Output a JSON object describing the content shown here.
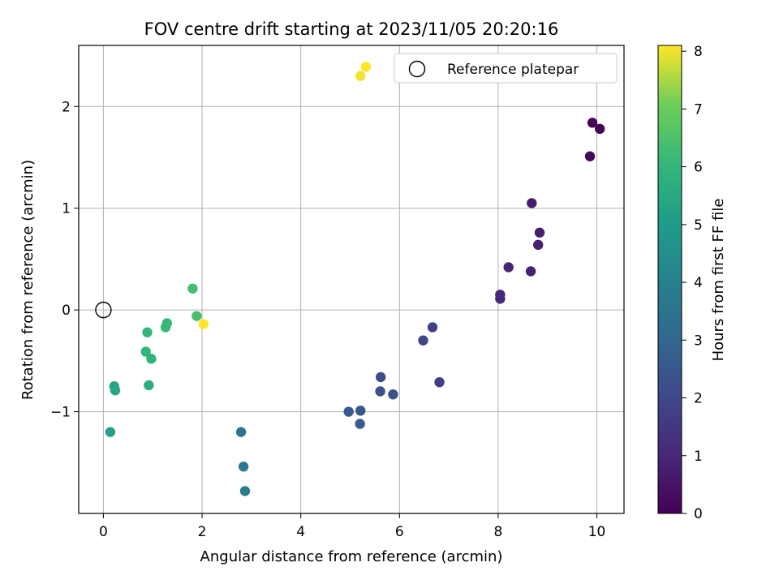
{
  "chart_data": {
    "type": "scatter",
    "title": "FOV centre drift starting at 2023/11/05 20:20:16",
    "xlabel": "Angular distance from reference (arcmin)",
    "ylabel": "Rotation from reference (arcmin)",
    "xlim": [
      -0.5,
      10.55
    ],
    "ylim": [
      -2.0,
      2.6
    ],
    "xticks": [
      0,
      2,
      4,
      6,
      8,
      10
    ],
    "xtick_labels": [
      "0",
      "2",
      "4",
      "6",
      "8",
      "10"
    ],
    "yticks": [
      -1,
      0,
      1,
      2
    ],
    "ytick_labels": [
      "−1",
      "0",
      "1",
      "2"
    ],
    "grid": true,
    "legend": {
      "entries": [
        "Reference platepar"
      ],
      "placement": "top-right"
    },
    "reference_point": {
      "x": 0,
      "y": 0,
      "name": "Reference platepar"
    },
    "colorbar": {
      "label": "Hours from first FF file",
      "range": [
        0,
        8.1
      ],
      "ticks": [
        0,
        1,
        2,
        3,
        4,
        5,
        6,
        7,
        8
      ],
      "tick_labels": [
        "0",
        "1",
        "2",
        "3",
        "4",
        "5",
        "6",
        "7",
        "8"
      ],
      "colormap": "viridis"
    },
    "points": [
      {
        "x": 9.91,
        "y": 1.84,
        "c": 0.05
      },
      {
        "x": 10.06,
        "y": 1.78,
        "c": 0.1
      },
      {
        "x": 9.86,
        "y": 1.51,
        "c": 0.15
      },
      {
        "x": 8.68,
        "y": 1.05,
        "c": 0.7
      },
      {
        "x": 8.84,
        "y": 0.76,
        "c": 0.75
      },
      {
        "x": 8.81,
        "y": 0.64,
        "c": 0.8
      },
      {
        "x": 8.21,
        "y": 0.42,
        "c": 0.9
      },
      {
        "x": 8.66,
        "y": 0.38,
        "c": 0.85
      },
      {
        "x": 8.04,
        "y": 0.15,
        "c": 1.0
      },
      {
        "x": 8.04,
        "y": 0.11,
        "c": 1.05
      },
      {
        "x": 6.67,
        "y": -0.17,
        "c": 1.8
      },
      {
        "x": 6.48,
        "y": -0.3,
        "c": 1.9
      },
      {
        "x": 6.81,
        "y": -0.71,
        "c": 1.7
      },
      {
        "x": 5.62,
        "y": -0.66,
        "c": 2.2
      },
      {
        "x": 5.87,
        "y": -0.83,
        "c": 2.3
      },
      {
        "x": 5.61,
        "y": -0.8,
        "c": 2.3
      },
      {
        "x": 4.97,
        "y": -1.0,
        "c": 2.6
      },
      {
        "x": 5.21,
        "y": -0.99,
        "c": 2.5
      },
      {
        "x": 5.2,
        "y": -1.12,
        "c": 2.6
      },
      {
        "x": 2.79,
        "y": -1.2,
        "c": 3.6
      },
      {
        "x": 2.84,
        "y": -1.54,
        "c": 3.7
      },
      {
        "x": 2.87,
        "y": -1.78,
        "c": 3.8
      },
      {
        "x": 0.14,
        "y": -1.2,
        "c": 5.2
      },
      {
        "x": 0.22,
        "y": -0.75,
        "c": 5.4
      },
      {
        "x": 0.24,
        "y": -0.79,
        "c": 5.4
      },
      {
        "x": 0.92,
        "y": -0.74,
        "c": 5.7
      },
      {
        "x": 0.86,
        "y": -0.41,
        "c": 5.9
      },
      {
        "x": 0.97,
        "y": -0.48,
        "c": 5.9
      },
      {
        "x": 0.89,
        "y": -0.22,
        "c": 6.0
      },
      {
        "x": 1.29,
        "y": -0.13,
        "c": 6.1
      },
      {
        "x": 1.26,
        "y": -0.17,
        "c": 6.1
      },
      {
        "x": 1.81,
        "y": 0.21,
        "c": 6.3
      },
      {
        "x": 1.89,
        "y": -0.06,
        "c": 6.4
      },
      {
        "x": 2.03,
        "y": -0.14,
        "c": 8.1
      },
      {
        "x": 5.21,
        "y": 2.3,
        "c": 8.0
      },
      {
        "x": 5.32,
        "y": 2.39,
        "c": 8.1
      }
    ]
  }
}
